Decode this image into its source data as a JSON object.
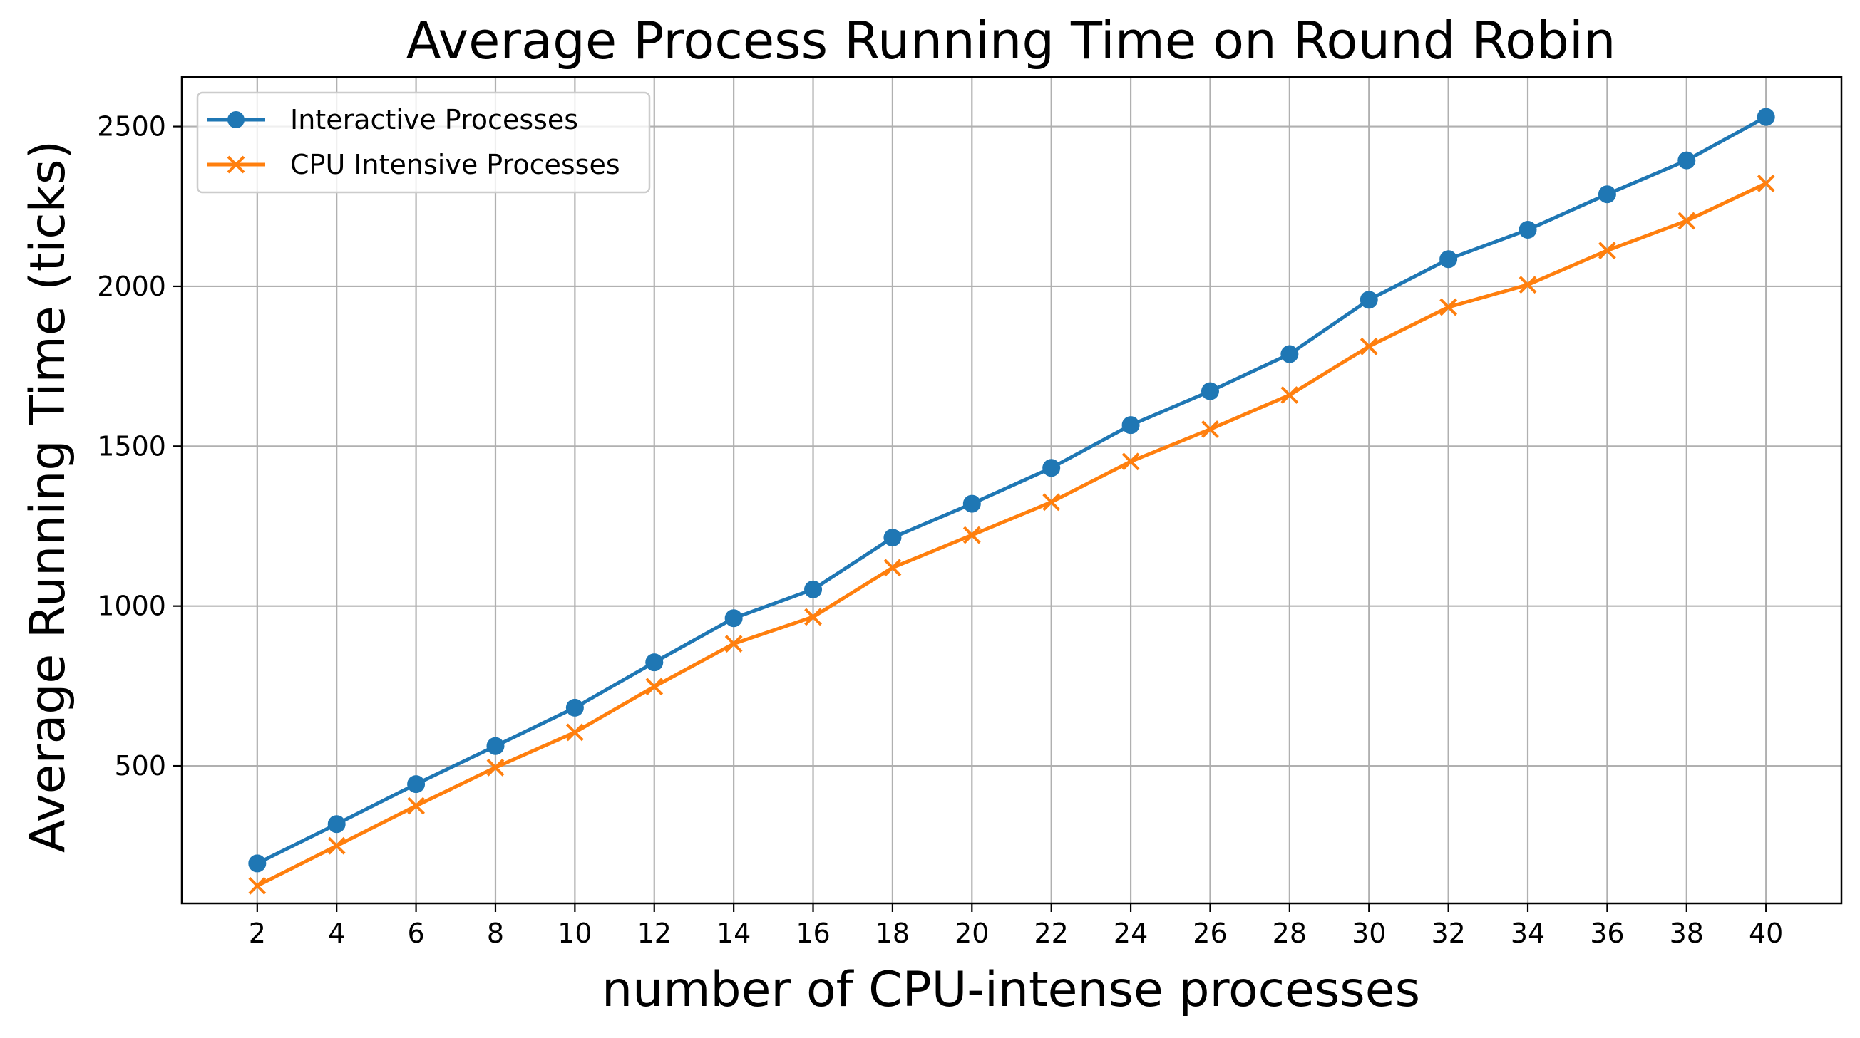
{
  "chart_data": {
    "type": "line",
    "title": "Average Process Running Time on Round Robin",
    "xlabel": "number of CPU-intense processes",
    "ylabel": "Average Running Time (ticks)",
    "x": [
      2,
      4,
      6,
      8,
      10,
      12,
      14,
      16,
      18,
      20,
      22,
      24,
      26,
      28,
      30,
      32,
      34,
      36,
      38,
      40
    ],
    "x_ticks": [
      "2",
      "4",
      "6",
      "8",
      "10",
      "12",
      "14",
      "16",
      "18",
      "20",
      "22",
      "24",
      "26",
      "28",
      "30",
      "32",
      "34",
      "36",
      "38",
      "40"
    ],
    "y_ticks": [
      500,
      1000,
      1500,
      2000,
      2500
    ],
    "y_tick_labels": [
      "500",
      "1000",
      "1500",
      "2000",
      "2500"
    ],
    "xlim": [
      0.1,
      41.9
    ],
    "ylim": [
      70,
      2655
    ],
    "grid": true,
    "legend_position": "top-left",
    "series": [
      {
        "name": "Interactive Processes",
        "color": "#1f77b4",
        "marker": "circle",
        "values": [
          195,
          318,
          443,
          562,
          682,
          824,
          962,
          1052,
          1214,
          1320,
          1432,
          1566,
          1672,
          1788,
          1958,
          2085,
          2177,
          2288,
          2394,
          2530
        ]
      },
      {
        "name": "CPU Intensive Processes",
        "color": "#ff7f0e",
        "marker": "x",
        "values": [
          125,
          250,
          375,
          495,
          605,
          748,
          882,
          966,
          1120,
          1222,
          1325,
          1452,
          1553,
          1660,
          1812,
          1935,
          2005,
          2112,
          2205,
          2322
        ]
      }
    ]
  }
}
